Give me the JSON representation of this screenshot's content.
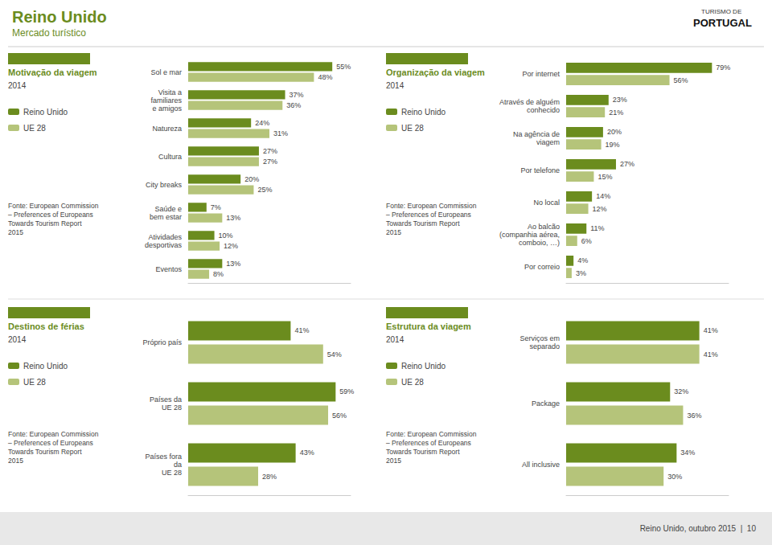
{
  "title": "Reino Unido",
  "subtitle": "Mercado turístico",
  "annotations": [
    "TURISMO DE",
    "PORTUGAL",
    "Reino Unido, outubro 2015  |  10"
  ],
  "chart_data": [
    {
      "type": "bar",
      "orientation": "horizontal",
      "title": "Motivação da viagem",
      "subtitle": "2014",
      "annotations": [
        "Fonte: European Commission\n– Preferences of Europeans\nTowards Tourism Report\n2015"
      ],
      "categories": [
        "Sol e mar",
        "Visita a\nfamiliares\ne amigos",
        "Natureza",
        "Cultura",
        "City breaks",
        "Saúde e\nbem estar",
        "Atividades\ndesportivas",
        "Eventos"
      ],
      "series": [
        {
          "name": "Reino Unido",
          "color": "#6b8c1e",
          "values": [
            55,
            37,
            24,
            27,
            20,
            7,
            10,
            13
          ],
          "value_labels": [
            "55%",
            "37%",
            "24%",
            "27%",
            "20%",
            "7%",
            "10%",
            "13%"
          ]
        },
        {
          "name": "UE 28",
          "color": "#b5c47a",
          "values": [
            48,
            36,
            31,
            27,
            25,
            13,
            12,
            8
          ],
          "value_labels": [
            "48%",
            "36%",
            "31%",
            "27%",
            "25%",
            "13%",
            "12%",
            "8%"
          ]
        }
      ],
      "xlim": [
        0,
        62
      ],
      "grid": false,
      "legend": "left",
      "data_labels": true,
      "tick_labels": "y"
    },
    {
      "type": "bar",
      "orientation": "horizontal",
      "title": "Organização da viagem",
      "subtitle": "2014",
      "annotations": [
        "Fonte: European Commission\n– Preferences of Europeans\nTowards Tourism Report\n2015"
      ],
      "categories": [
        "Por internet",
        "Através de alguém\nconhecido",
        "Na agência de\nviagem",
        "Por telefone",
        "No local",
        "Ao balcão\n(companhia aérea,\ncomboio, …)",
        "Por correio"
      ],
      "series": [
        {
          "name": "Reino Unido",
          "color": "#6b8c1e",
          "values": [
            79,
            23,
            20,
            27,
            14,
            11,
            4
          ],
          "value_labels": [
            "79%",
            "23%",
            "20%",
            "27%",
            "14%",
            "11%",
            "4%"
          ]
        },
        {
          "name": "UE 28",
          "color": "#b5c47a",
          "values": [
            56,
            21,
            19,
            15,
            12,
            6,
            3
          ],
          "value_labels": [
            "56%",
            "21%",
            "19%",
            "15%",
            "12%",
            "6%",
            "3%"
          ]
        }
      ],
      "xlim": [
        0,
        88
      ],
      "grid": false,
      "legend": "left",
      "data_labels": true,
      "tick_labels": "y"
    },
    {
      "type": "bar",
      "orientation": "horizontal",
      "title": "Destinos de férias",
      "subtitle": "2014",
      "annotations": [
        "Fonte: European Commission\n– Preferences of Europeans\nTowards Tourism Report\n2015"
      ],
      "categories": [
        "Próprio país",
        "Países da\nUE 28",
        "Países fora\nda\nUE 28"
      ],
      "series": [
        {
          "name": "Reino Unido",
          "color": "#6b8c1e",
          "values": [
            41,
            59,
            43
          ],
          "value_labels": [
            "41%",
            "59%",
            "43%"
          ]
        },
        {
          "name": "UE 28",
          "color": "#b5c47a",
          "values": [
            54,
            56,
            28
          ],
          "value_labels": [
            "54%",
            "56%",
            "28%"
          ]
        }
      ],
      "xlim": [
        0,
        65
      ],
      "grid": false,
      "legend": "left",
      "data_labels": true,
      "tick_labels": "y"
    },
    {
      "type": "bar",
      "orientation": "horizontal",
      "title": "Estrutura da viagem",
      "subtitle": "2014",
      "annotations": [
        "Fonte: European Commission\n– Preferences of Europeans\nTowards Tourism Report\n2015"
      ],
      "categories": [
        "Serviços em\nseparado",
        "Package",
        "All inclusive"
      ],
      "series": [
        {
          "name": "Reino Unido",
          "color": "#6b8c1e",
          "values": [
            41,
            32,
            34
          ],
          "value_labels": [
            "41%",
            "32%",
            "34%"
          ]
        },
        {
          "name": "UE 28",
          "color": "#b5c47a",
          "values": [
            41,
            36,
            30
          ],
          "value_labels": [
            "41%",
            "36%",
            "30%"
          ]
        }
      ],
      "xlim": [
        0,
        50
      ],
      "grid": false,
      "legend": "left",
      "data_labels": true,
      "tick_labels": "y"
    }
  ]
}
